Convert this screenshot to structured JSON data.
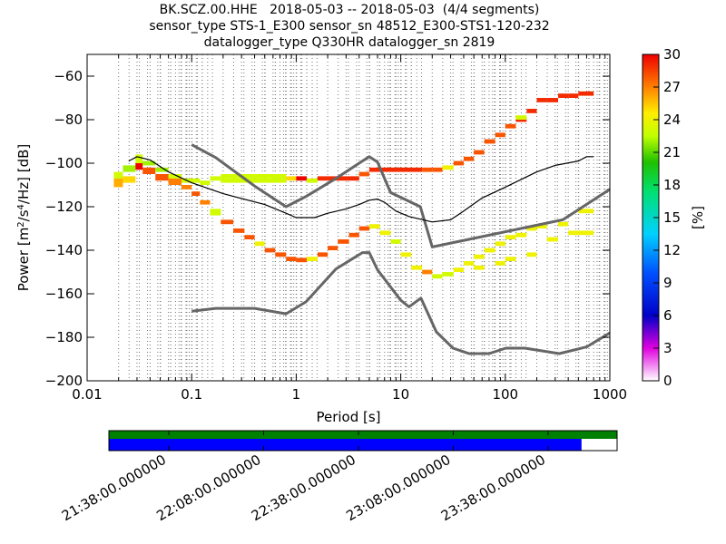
{
  "title": {
    "line1": "BK.SCZ.00.HHE   2018-05-03 -- 2018-05-03  (4/4 segments)",
    "line2": "sensor_type STS-1_E300 sensor_sn 48512_E300-STS1-120-232",
    "line3": "datalogger_type Q330HR datalogger_sn 2819"
  },
  "chart_data": [
    {
      "type": "heatmap",
      "subtype": "probabilistic-power-spectral-density",
      "xlabel": "Period [s]",
      "ylabel_main": "Power [m",
      "ylabel_sup1": "2",
      "ylabel_mid": "/s",
      "ylabel_sup2": "4",
      "ylabel_tail": "/Hz] [dB]",
      "xscale": "log",
      "xlim": [
        0.01,
        1000
      ],
      "ylim": [
        -200,
        -50
      ],
      "xticks": [
        {
          "value": 0.01,
          "label": "0.01"
        },
        {
          "value": 0.1,
          "label": "0.1"
        },
        {
          "value": 1,
          "label": "1"
        },
        {
          "value": 10,
          "label": "10"
        },
        {
          "value": 100,
          "label": "100"
        },
        {
          "value": 1000,
          "label": "1000"
        }
      ],
      "yticks": [
        {
          "value": -60,
          "label": "−60"
        },
        {
          "value": -80,
          "label": "−80"
        },
        {
          "value": -100,
          "label": "−100"
        },
        {
          "value": -120,
          "label": "−120"
        },
        {
          "value": -140,
          "label": "−140"
        },
        {
          "value": -160,
          "label": "−160"
        },
        {
          "value": -180,
          "label": "−180"
        },
        {
          "value": -200,
          "label": "−200"
        }
      ],
      "grid": "vertical dotted at period bins",
      "colorbar": {
        "label": "[%]",
        "range": [
          0,
          30
        ],
        "ticks": [
          "0",
          "3",
          "6",
          "9",
          "12",
          "15",
          "18",
          "21",
          "24",
          "27",
          "30"
        ]
      },
      "nhnm": [
        [
          0.1,
          -91.5
        ],
        [
          0.17,
          -97.4
        ],
        [
          0.4,
          -110.5
        ],
        [
          0.8,
          -120
        ],
        [
          1.24,
          -115.3
        ],
        [
          2.4,
          -107
        ],
        [
          4.3,
          -99
        ],
        [
          5,
          -97
        ],
        [
          6,
          -99.5
        ],
        [
          8,
          -113.5
        ],
        [
          15.4,
          -120
        ],
        [
          20,
          -138.5
        ],
        [
          354.8,
          -126
        ],
        [
          1000,
          -112
        ]
      ],
      "nlnm": [
        [
          0.1,
          -168
        ],
        [
          0.17,
          -166.7
        ],
        [
          0.4,
          -166.7
        ],
        [
          0.8,
          -169.2
        ],
        [
          1.24,
          -163.7
        ],
        [
          2.4,
          -148.6
        ],
        [
          4.3,
          -141.1
        ],
        [
          5,
          -141.1
        ],
        [
          6,
          -149
        ],
        [
          10,
          -163
        ],
        [
          12,
          -166
        ],
        [
          15.6,
          -162
        ],
        [
          21.9,
          -177.5
        ],
        [
          31.6,
          -185
        ],
        [
          45,
          -187.5
        ],
        [
          70,
          -187.5
        ],
        [
          101,
          -185
        ],
        [
          154,
          -185
        ],
        [
          328,
          -187.5
        ],
        [
          600,
          -184.4
        ],
        [
          1000,
          -178
        ]
      ],
      "mean_psd": [
        [
          0.025,
          -99
        ],
        [
          0.03,
          -97
        ],
        [
          0.04,
          -98.5
        ],
        [
          0.06,
          -104
        ],
        [
          0.1,
          -109
        ],
        [
          0.2,
          -114
        ],
        [
          0.5,
          -119
        ],
        [
          0.8,
          -123
        ],
        [
          1,
          -125
        ],
        [
          1.5,
          -125
        ],
        [
          2,
          -123
        ],
        [
          3,
          -121
        ],
        [
          4,
          -119
        ],
        [
          5,
          -117
        ],
        [
          6,
          -116.5
        ],
        [
          7,
          -118
        ],
        [
          9,
          -122
        ],
        [
          12,
          -124.5
        ],
        [
          20,
          -127
        ],
        [
          30,
          -126
        ],
        [
          40,
          -122
        ],
        [
          60,
          -116
        ],
        [
          100,
          -111
        ],
        [
          200,
          -104
        ],
        [
          300,
          -101
        ],
        [
          500,
          -99
        ],
        [
          600,
          -97
        ],
        [
          700,
          -97
        ]
      ],
      "density_blocks": [
        {
          "p0": 0.018,
          "p1": 0.022,
          "v0": -111,
          "v1": -107,
          "level": 26
        },
        {
          "p0": 0.018,
          "p1": 0.022,
          "v0": -107,
          "v1": -104,
          "level": 23
        },
        {
          "p0": 0.022,
          "p1": 0.029,
          "v0": -109,
          "v1": -106,
          "level": 25
        },
        {
          "p0": 0.022,
          "p1": 0.029,
          "v0": -104,
          "v1": -101,
          "level": 22
        },
        {
          "p0": 0.029,
          "p1": 0.034,
          "v0": -103,
          "v1": -100,
          "level": 30
        },
        {
          "p0": 0.029,
          "p1": 0.034,
          "v0": -100,
          "v1": -96,
          "level": 23
        },
        {
          "p0": 0.034,
          "p1": 0.045,
          "v0": -105,
          "v1": -102,
          "level": 28
        },
        {
          "p0": 0.034,
          "p1": 0.045,
          "v0": -101,
          "v1": -99,
          "level": 22
        },
        {
          "p0": 0.045,
          "p1": 0.06,
          "v0": -108,
          "v1": -105,
          "level": 28
        },
        {
          "p0": 0.045,
          "p1": 0.06,
          "v0": -104,
          "v1": -102,
          "level": 22
        },
        {
          "p0": 0.06,
          "p1": 0.08,
          "v0": -110,
          "v1": -107,
          "level": 27
        },
        {
          "p0": 0.06,
          "p1": 0.08,
          "v0": -107,
          "v1": -105,
          "level": 23
        },
        {
          "p0": 0.08,
          "p1": 0.1,
          "v0": -112,
          "v1": -110,
          "level": 27
        },
        {
          "p0": 0.08,
          "p1": 0.12,
          "v0": -109,
          "v1": -107,
          "level": 23
        },
        {
          "p0": 0.1,
          "p1": 0.12,
          "v0": -115,
          "v1": -113,
          "level": 28
        },
        {
          "p0": 0.12,
          "p1": 0.15,
          "v0": -119,
          "v1": -117,
          "level": 27
        },
        {
          "p0": 0.12,
          "p1": 0.15,
          "v0": -110,
          "v1": -108,
          "level": 23
        },
        {
          "p0": 0.15,
          "p1": 0.19,
          "v0": -124,
          "v1": -121,
          "level": 23
        },
        {
          "p0": 0.15,
          "p1": 0.19,
          "v0": -108,
          "v1": -106,
          "level": 23
        },
        {
          "p0": 0.19,
          "p1": 0.25,
          "v0": -128,
          "v1": -126,
          "level": 28
        },
        {
          "p0": 0.19,
          "p1": 0.8,
          "v0": -109,
          "v1": -107,
          "level": 23
        },
        {
          "p0": 0.19,
          "p1": 0.8,
          "v0": -107,
          "v1": -105,
          "level": 23
        },
        {
          "p0": 0.25,
          "p1": 0.32,
          "v0": -132,
          "v1": -130,
          "level": 28
        },
        {
          "p0": 0.32,
          "p1": 0.4,
          "v0": -135,
          "v1": -133,
          "level": 28
        },
        {
          "p0": 0.4,
          "p1": 0.5,
          "v0": -138,
          "v1": -136,
          "level": 24
        },
        {
          "p0": 0.5,
          "p1": 0.63,
          "v0": -141,
          "v1": -139,
          "level": 28
        },
        {
          "p0": 0.63,
          "p1": 0.8,
          "v0": -143,
          "v1": -141,
          "level": 28
        },
        {
          "p0": 0.8,
          "p1": 1.0,
          "v0": -145,
          "v1": -143,
          "level": 28
        },
        {
          "p0": 0.8,
          "p1": 1.0,
          "v0": -108,
          "v1": -106,
          "level": 25
        },
        {
          "p0": 1.0,
          "p1": 1.26,
          "v0": -145.5,
          "v1": -143.5,
          "level": 28
        },
        {
          "p0": 1.0,
          "p1": 1.26,
          "v0": -108,
          "v1": -106,
          "level": 30
        },
        {
          "p0": 1.26,
          "p1": 1.6,
          "v0": -145,
          "v1": -143,
          "level": 24
        },
        {
          "p0": 1.26,
          "p1": 1.6,
          "v0": -109,
          "v1": -107,
          "level": 23
        },
        {
          "p0": 1.6,
          "p1": 2.0,
          "v0": -143,
          "v1": -141,
          "level": 28
        },
        {
          "p0": 1.6,
          "p1": 4.0,
          "v0": -108,
          "v1": -106,
          "level": 29
        },
        {
          "p0": 2.0,
          "p1": 2.5,
          "v0": -140,
          "v1": -138,
          "level": 28
        },
        {
          "p0": 2.5,
          "p1": 3.2,
          "v0": -137,
          "v1": -135,
          "level": 28
        },
        {
          "p0": 3.2,
          "p1": 4.0,
          "v0": -134,
          "v1": -132,
          "level": 28
        },
        {
          "p0": 4.0,
          "p1": 5.0,
          "v0": -131,
          "v1": -129,
          "level": 28
        },
        {
          "p0": 4.0,
          "p1": 5.0,
          "v0": -106,
          "v1": -104,
          "level": 28
        },
        {
          "p0": 5.0,
          "p1": 6.3,
          "v0": -130,
          "v1": -128,
          "level": 24
        },
        {
          "p0": 5.0,
          "p1": 16.0,
          "v0": -104,
          "v1": -102,
          "level": 29
        },
        {
          "p0": 6.3,
          "p1": 8.0,
          "v0": -133,
          "v1": -131,
          "level": 24
        },
        {
          "p0": 8.0,
          "p1": 10.0,
          "v0": -137,
          "v1": -135,
          "level": 23
        },
        {
          "p0": 10.0,
          "p1": 12.6,
          "v0": -143,
          "v1": -141,
          "level": 24
        },
        {
          "p0": 12.6,
          "p1": 16.0,
          "v0": -149,
          "v1": -147,
          "level": 24
        },
        {
          "p0": 16.0,
          "p1": 20.0,
          "v0": -151,
          "v1": -149,
          "level": 27
        },
        {
          "p0": 16.0,
          "p1": 20.0,
          "v0": -104,
          "v1": -102,
          "level": 28
        },
        {
          "p0": 20.0,
          "p1": 25.0,
          "v0": -153,
          "v1": -151,
          "level": 23
        },
        {
          "p0": 20.0,
          "p1": 25.0,
          "v0": -104,
          "v1": -102,
          "level": 28
        },
        {
          "p0": 25.0,
          "p1": 32.0,
          "v0": -152,
          "v1": -150,
          "level": 23
        },
        {
          "p0": 25.0,
          "p1": 32.0,
          "v0": -103,
          "v1": -101,
          "level": 24
        },
        {
          "p0": 32.0,
          "p1": 40.0,
          "v0": -150,
          "v1": -148,
          "level": 24
        },
        {
          "p0": 32.0,
          "p1": 40.0,
          "v0": -101,
          "v1": -99,
          "level": 28
        },
        {
          "p0": 40.0,
          "p1": 50.0,
          "v0": -147,
          "v1": -145,
          "level": 24
        },
        {
          "p0": 40.0,
          "p1": 50.0,
          "v0": -99,
          "v1": -97,
          "level": 28
        },
        {
          "p0": 50.0,
          "p1": 63.0,
          "v0": -144,
          "v1": -142,
          "level": 24
        },
        {
          "p0": 50.0,
          "p1": 63.0,
          "v0": -149,
          "v1": -147,
          "level": 24
        },
        {
          "p0": 50.0,
          "p1": 63.0,
          "v0": -96,
          "v1": -94,
          "level": 28
        },
        {
          "p0": 63.0,
          "p1": 80.0,
          "v0": -141,
          "v1": -139,
          "level": 24
        },
        {
          "p0": 63.0,
          "p1": 80.0,
          "v0": -91,
          "v1": -89,
          "level": 28
        },
        {
          "p0": 80.0,
          "p1": 100.0,
          "v0": -138,
          "v1": -136,
          "level": 24
        },
        {
          "p0": 80.0,
          "p1": 100.0,
          "v0": -147,
          "v1": -145,
          "level": 24
        },
        {
          "p0": 80.0,
          "p1": 100.0,
          "v0": -88,
          "v1": -86,
          "level": 28
        },
        {
          "p0": 100.0,
          "p1": 126.0,
          "v0": -135,
          "v1": -133,
          "level": 24
        },
        {
          "p0": 100.0,
          "p1": 126.0,
          "v0": -145,
          "v1": -143,
          "level": 24
        },
        {
          "p0": 100.0,
          "p1": 126.0,
          "v0": -84,
          "v1": -82,
          "level": 28
        },
        {
          "p0": 126.0,
          "p1": 160.0,
          "v0": -134,
          "v1": -132,
          "level": 24
        },
        {
          "p0": 126.0,
          "p1": 160.0,
          "v0": -81,
          "v1": -79,
          "level": 29
        },
        {
          "p0": 126.0,
          "p1": 160.0,
          "v0": -80,
          "v1": -78,
          "level": 23
        },
        {
          "p0": 160.0,
          "p1": 200.0,
          "v0": -131,
          "v1": -129,
          "level": 24
        },
        {
          "p0": 160.0,
          "p1": 200.0,
          "v0": -143,
          "v1": -141,
          "level": 24
        },
        {
          "p0": 160.0,
          "p1": 200.0,
          "v0": -77,
          "v1": -75,
          "level": 29
        },
        {
          "p0": 200.0,
          "p1": 250.0,
          "v0": -130,
          "v1": -128,
          "level": 24
        },
        {
          "p0": 200.0,
          "p1": 250.0,
          "v0": -72,
          "v1": -70,
          "level": 29
        },
        {
          "p0": 250.0,
          "p1": 320.0,
          "v0": -136,
          "v1": -134,
          "level": 24
        },
        {
          "p0": 250.0,
          "p1": 320.0,
          "v0": -72,
          "v1": -70,
          "level": 29
        },
        {
          "p0": 320.0,
          "p1": 400.0,
          "v0": -129,
          "v1": -127,
          "level": 24
        },
        {
          "p0": 320.0,
          "p1": 400.0,
          "v0": -70,
          "v1": -68,
          "level": 29
        },
        {
          "p0": 400.0,
          "p1": 500.0,
          "v0": -133,
          "v1": -131,
          "level": 24
        },
        {
          "p0": 400.0,
          "p1": 500.0,
          "v0": -70,
          "v1": -68,
          "level": 29
        },
        {
          "p0": 500.0,
          "p1": 700.0,
          "v0": -123,
          "v1": -121,
          "level": 24
        },
        {
          "p0": 500.0,
          "p1": 700.0,
          "v0": -133,
          "v1": -131,
          "level": 24
        },
        {
          "p0": 500.0,
          "p1": 700.0,
          "v0": -69,
          "v1": -67,
          "level": 29
        }
      ]
    },
    {
      "type": "timeline",
      "subtype": "data-coverage",
      "xticks": [
        "21:38:00.000000",
        "22:08:00.000000",
        "22:38:00.000000",
        "23:08:00.000000",
        "23:38:00.000000"
      ],
      "data_coverage_fraction": 1.0,
      "psd_coverage_fraction": 0.93,
      "colors": {
        "data": "#008000",
        "psd": "#0000ff"
      }
    }
  ]
}
